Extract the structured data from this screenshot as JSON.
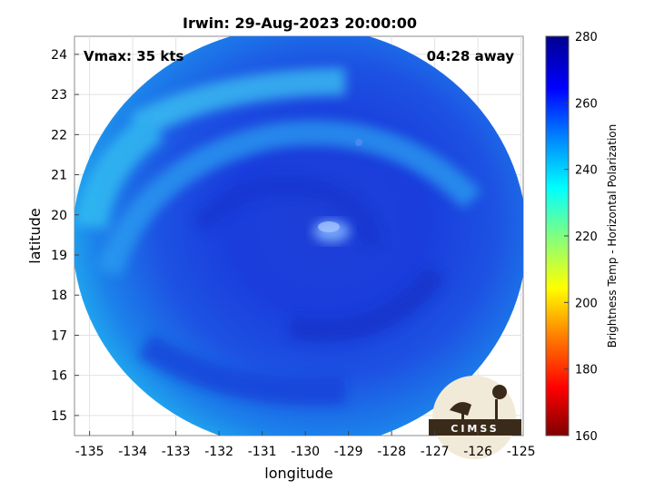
{
  "title": "Irwin: 29-Aug-2023 20:00:00",
  "overlay": {
    "vmax": "Vmax: 35 kts",
    "time_away": "04:28 away"
  },
  "axes": {
    "xlabel": "longitude",
    "ylabel": "latitude",
    "x_ticks": [
      "-135",
      "-134",
      "-133",
      "-132",
      "-131",
      "-130",
      "-129",
      "-128",
      "-127",
      "-126",
      "-125"
    ],
    "y_ticks": [
      "15",
      "16",
      "17",
      "18",
      "19",
      "20",
      "21",
      "22",
      "23",
      "24"
    ],
    "xlim": [
      -135.35,
      -124.95
    ],
    "ylim": [
      14.5,
      24.45
    ],
    "grid": true
  },
  "colorbar": {
    "label": "Brightness Temp - Horizontal Polarization",
    "ticks": [
      "160",
      "180",
      "200",
      "220",
      "240",
      "260",
      "280"
    ],
    "range": [
      160,
      280
    ],
    "colormap": [
      "#7f0000",
      "#ff0000",
      "#ff8000",
      "#ffff00",
      "#80ff80",
      "#00ffff",
      "#0080ff",
      "#0000ff",
      "#00008f"
    ]
  },
  "storm_center": {
    "lon": -129.6,
    "lat": 19.8
  },
  "logo": {
    "text": "CIMSS"
  }
}
